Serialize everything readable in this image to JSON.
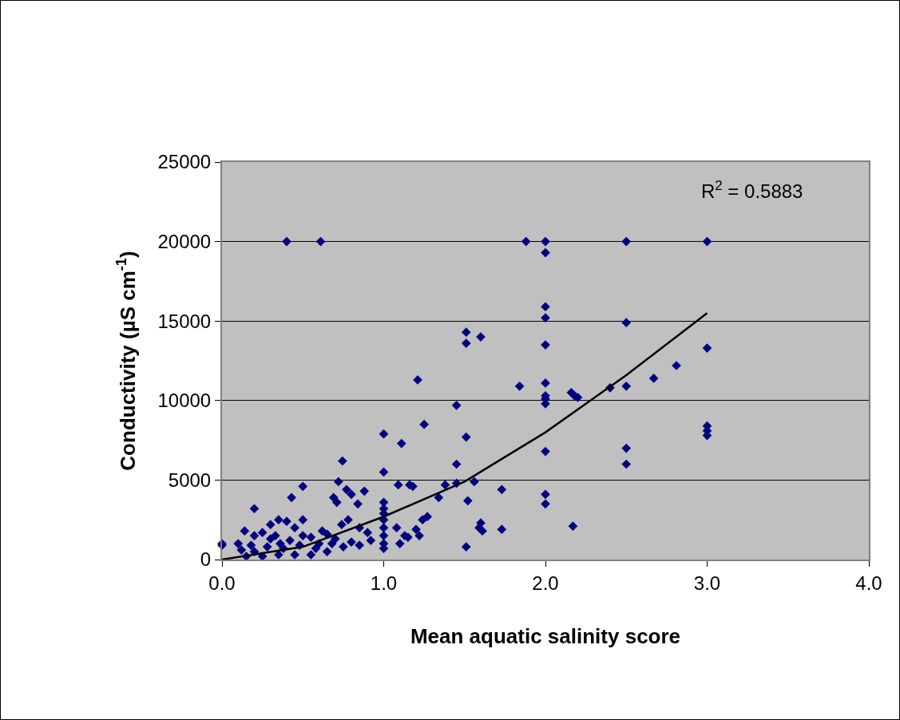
{
  "chart_data": {
    "type": "scatter",
    "xlabel": "Mean aquatic salinity score",
    "ylabel": "Conductivity (µS cm$^{-1}$)",
    "annotations": [
      "R$^{2}$ = 0.5883"
    ],
    "xlim": [
      0,
      4
    ],
    "xticks": [
      {
        "value": 0,
        "label": "0.0"
      },
      {
        "value": 1,
        "label": "1.0"
      },
      {
        "value": 2,
        "label": "2.0"
      },
      {
        "value": 3,
        "label": "3.0"
      },
      {
        "value": 4,
        "label": "4.0"
      }
    ],
    "ylim": [
      0,
      25000
    ],
    "yticks": [
      0,
      5000,
      10000,
      15000,
      20000,
      25000
    ],
    "grid": "y",
    "series": [
      {
        "color": "#000080",
        "marker": "diamond",
        "x": [
          0.4,
          0.61,
          1.88,
          2.0,
          2.0,
          2.5,
          3.0,
          2.0,
          2.0,
          2.0,
          2.0,
          2.0,
          2.0,
          2.0,
          2.0,
          2.0,
          2.0,
          1.51,
          1.51,
          1.6,
          1.84,
          1.21,
          1.25,
          1.45,
          1.51,
          1.45,
          1.38,
          1.45,
          1.56,
          1.52,
          1.51,
          1.6,
          1.61,
          1.59,
          1.73,
          1.73,
          2.16,
          2.18,
          2.2,
          2.4,
          2.5,
          2.5,
          2.5,
          2.5,
          2.67,
          2.81,
          3.0,
          3.0,
          3.0,
          3.0,
          2.17,
          1.0,
          1.0,
          1.0,
          1.0,
          1.0,
          1.0,
          1.0,
          1.0,
          1.0,
          1.0,
          1.11,
          1.09,
          1.16,
          1.18,
          1.27,
          1.24,
          1.2,
          1.22,
          1.15,
          1.1,
          1.13,
          1.08,
          1.34,
          0.0,
          0.0,
          0.1,
          0.14,
          0.2,
          0.2,
          0.2,
          0.25,
          0.3,
          0.3,
          0.35,
          0.36,
          0.4,
          0.43,
          0.45,
          0.5,
          0.5,
          0.5,
          0.55,
          0.6,
          0.62,
          0.65,
          0.69,
          0.71,
          0.72,
          0.745,
          0.77,
          0.8,
          0.84,
          0.88,
          0.78,
          0.74,
          0.85,
          0.9,
          0.92,
          0.15,
          0.25,
          0.35,
          0.45,
          0.55,
          0.65,
          0.12,
          0.18,
          0.28,
          0.38,
          0.48,
          0.58,
          0.68,
          0.75,
          0.8,
          0.85,
          0.7,
          0.33,
          0.42
        ],
        "values": [
          20000,
          20000,
          20000,
          20000,
          19300,
          20000,
          20000,
          15900,
          15200,
          13500,
          11100,
          10300,
          10100,
          9800,
          6800,
          4100,
          3500,
          14300,
          13600,
          14000,
          10900,
          11300,
          8500,
          9700,
          7700,
          6000,
          4700,
          4800,
          4900,
          3700,
          800,
          2300,
          1800,
          2000,
          1900,
          4400,
          10500,
          10300,
          10200,
          10800,
          10900,
          14900,
          7000,
          6000,
          11400,
          12200,
          13300,
          8400,
          8100,
          7800,
          2100,
          7900,
          5500,
          3600,
          3200,
          2900,
          2500,
          2000,
          1500,
          1000,
          700,
          7300,
          4700,
          4700,
          4600,
          2700,
          2500,
          1900,
          1500,
          1400,
          1000,
          1500,
          2000,
          3900,
          900,
          1000,
          1000,
          1800,
          1500,
          500,
          3200,
          1700,
          1300,
          2200,
          2500,
          1000,
          2400,
          3900,
          2000,
          2500,
          1500,
          4600,
          1400,
          1000,
          1800,
          1600,
          3900,
          3600,
          4900,
          6200,
          4400,
          4100,
          3500,
          4300,
          2500,
          2200,
          2000,
          1700,
          1200,
          200,
          200,
          300,
          300,
          300,
          500,
          600,
          900,
          800,
          700,
          900,
          700,
          1000,
          800,
          1100,
          900,
          1300,
          1500,
          1200
        ]
      },
      {
        "type": "line",
        "color": "#000000",
        "line_style": "solid",
        "x": [
          0,
          0.5,
          1.0,
          1.5,
          2.0,
          2.5,
          3.0
        ],
        "values": [
          0,
          800,
          2700,
          4900,
          8000,
          11600,
          15500
        ]
      }
    ]
  }
}
